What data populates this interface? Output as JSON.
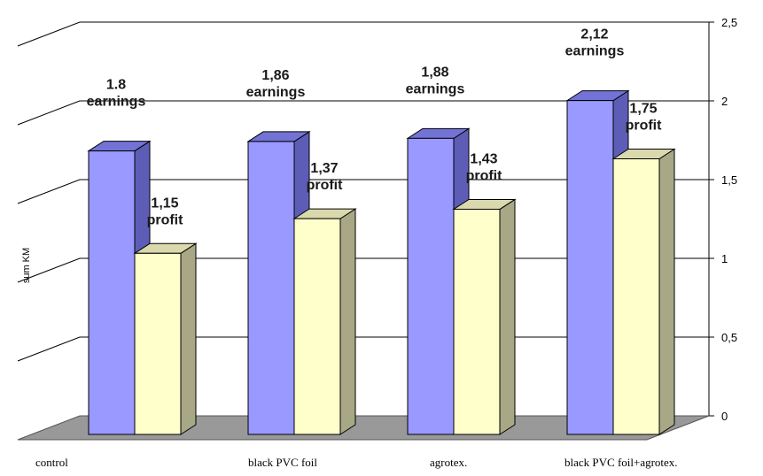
{
  "chart_data": {
    "type": "bar",
    "style": "3d-clustered",
    "categories": [
      "control",
      "black PVC foil",
      "agrotex.",
      "black PVC foil+agrotex."
    ],
    "series": [
      {
        "values": [
          1.8,
          1.86,
          1.88,
          2.12
        ],
        "value_labels": [
          "1.8",
          "1,86",
          "1,88",
          "2,12"
        ],
        "label_word": "earnings",
        "color": "#9999ff",
        "side_color": "#5d5db8",
        "top_color": "#7373d6"
      },
      {
        "values": [
          1.15,
          1.37,
          1.43,
          1.75
        ],
        "value_labels": [
          "1,15",
          "1,37",
          "1,43",
          "1,75"
        ],
        "label_word": "profit",
        "color": "#ffffcc",
        "side_color": "#a8a886",
        "top_color": "#d9d9ad"
      }
    ],
    "ylabel": "sum KM",
    "xlabel": "",
    "ylim": [
      0,
      2.5
    ],
    "yticks": [
      0,
      0.5,
      1,
      1.5,
      2,
      2.5
    ],
    "ytick_labels": [
      "0",
      "0,5",
      "1",
      "1,5",
      "2",
      "2,5"
    ],
    "y_axis_side": "right",
    "grid": true,
    "legend": "none",
    "floor_color": "#999999"
  }
}
